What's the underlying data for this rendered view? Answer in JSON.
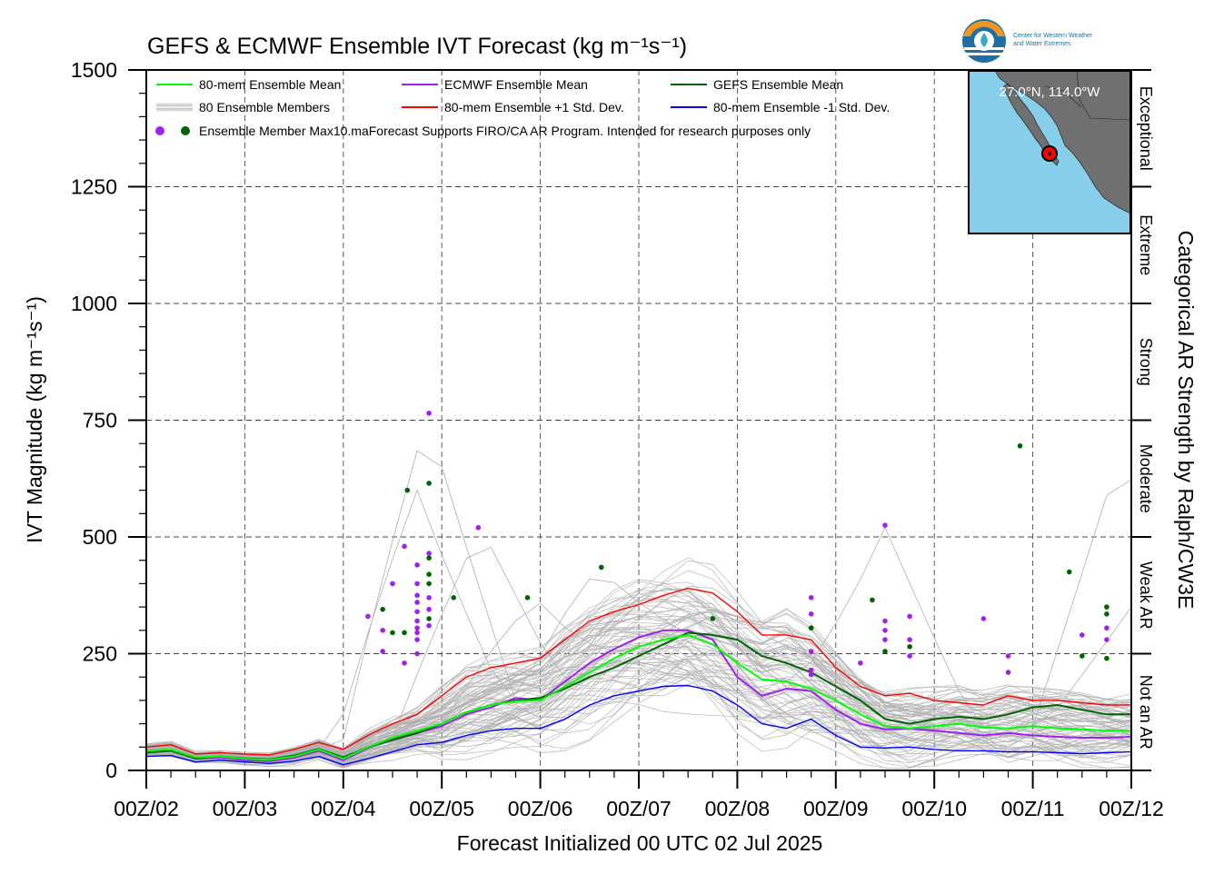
{
  "chart_data": {
    "type": "line",
    "title": "GEFS & ECMWF Ensemble IVT Forecast (kg m⁻¹s⁻¹)",
    "xlabel": "Forecast Initialized 00 UTC 02 Jul 2025",
    "ylabel": "IVT Magnitude (kg m⁻¹s⁻¹)",
    "right_axis_label": "Categorical AR Strength by Ralph/CW3E",
    "ylim": [
      0,
      1500
    ],
    "xlim": [
      0,
      10
    ],
    "y_ticks": [
      "0",
      "250",
      "500",
      "750",
      "1000",
      "1250",
      "1500"
    ],
    "x_ticks": [
      "00Z/02",
      "00Z/03",
      "00Z/04",
      "00Z/05",
      "00Z/06",
      "00Z/07",
      "00Z/08",
      "00Z/09",
      "00Z/10",
      "00Z/11",
      "00Z/12"
    ],
    "grid": true,
    "legend_position": "top-left",
    "categories_right": [
      {
        "label": "Not an AR",
        "from": 0,
        "to": 250
      },
      {
        "label": "Weak AR",
        "from": 250,
        "to": 500
      },
      {
        "label": "Moderate",
        "from": 500,
        "to": 750
      },
      {
        "label": "Strong",
        "from": 750,
        "to": 1000
      },
      {
        "label": "Extreme",
        "from": 1000,
        "to": 1250
      },
      {
        "label": "Exceptional",
        "from": 1250,
        "to": 1500
      }
    ],
    "legend": [
      {
        "label": "80-mem Ensemble Mean",
        "color": "#00ff00",
        "kind": "line"
      },
      {
        "label": "ECMWF Ensemble Mean",
        "color": "#a020f0",
        "kind": "line"
      },
      {
        "label": "GEFS Ensemble Mean",
        "color": "#006400",
        "kind": "line"
      },
      {
        "label": "80 Ensemble Members",
        "color": "#b0b0b0",
        "kind": "multiline"
      },
      {
        "label": "80-mem Ensemble +1 Std. Dev.",
        "color": "#ff0000",
        "kind": "line"
      },
      {
        "label": "80-mem Ensemble -1 Std. Dev.",
        "color": "#0000ff",
        "kind": "line"
      },
      {
        "label": "Ensemble Member Max10.maForecast Supports FIRO/CA AR Program. Intended for research purposes only",
        "color": "#a020f0",
        "color2": "#006400",
        "kind": "dots"
      }
    ],
    "x_step_days": 0.25,
    "series": [
      {
        "name": "80-mem Ensemble Mean",
        "color": "#00ff00",
        "width": 2,
        "values": [
          42,
          45,
          28,
          30,
          25,
          23,
          30,
          45,
          25,
          50,
          70,
          85,
          100,
          125,
          140,
          148,
          150,
          180,
          210,
          240,
          265,
          280,
          290,
          270,
          230,
          195,
          190,
          175,
          150,
          120,
          95,
          90,
          95,
          100,
          92,
          90,
          95,
          90,
          88,
          85,
          85,
          90,
          95,
          90,
          80,
          80,
          85,
          95,
          100,
          105,
          105,
          100,
          110,
          120,
          130,
          150,
          180,
          200,
          190,
          160,
          170,
          185,
          190,
          200,
          210,
          210,
          190,
          160,
          165,
          175,
          185,
          190,
          195,
          190,
          180,
          150,
          145,
          150,
          155,
          155,
          155,
          160,
          130,
          100
        ]
      },
      {
        "name": "ECMWF Ensemble Mean",
        "color": "#a020f0",
        "width": 2,
        "values": [
          40,
          44,
          25,
          28,
          22,
          20,
          27,
          42,
          22,
          48,
          68,
          80,
          95,
          120,
          135,
          155,
          150,
          190,
          230,
          260,
          285,
          300,
          300,
          280,
          200,
          160,
          175,
          170,
          130,
          100,
          88,
          90,
          85,
          80,
          75,
          80,
          75,
          72,
          70,
          70,
          72,
          75,
          70,
          68,
          65,
          70,
          75,
          80,
          85,
          90,
          100,
          110,
          120,
          140,
          150,
          170,
          200,
          220,
          185,
          155,
          170,
          185,
          195,
          205,
          215,
          220,
          195,
          155,
          175,
          190,
          192,
          192,
          190,
          192,
          190,
          145,
          150,
          160,
          155,
          155,
          155,
          160,
          135,
          95
        ]
      },
      {
        "name": "GEFS Ensemble Mean",
        "color": "#006400",
        "width": 2,
        "values": [
          38,
          42,
          26,
          30,
          26,
          24,
          32,
          46,
          28,
          50,
          65,
          80,
          100,
          125,
          140,
          150,
          155,
          175,
          200,
          220,
          245,
          270,
          295,
          290,
          280,
          245,
          230,
          210,
          180,
          150,
          110,
          100,
          110,
          115,
          110,
          120,
          135,
          140,
          130,
          120,
          120,
          122,
          110,
          108,
          112,
          118,
          122,
          130,
          125,
          110,
          110,
          120,
          125,
          125,
          130,
          135,
          145,
          160,
          140,
          120,
          130,
          140,
          140,
          160,
          175,
          195,
          170,
          140,
          140,
          145,
          150,
          165,
          190,
          195,
          180,
          145,
          135,
          140,
          140,
          145,
          155,
          160,
          145,
          125
        ]
      },
      {
        "name": "80-mem Ensemble +1 Std. Dev.",
        "color": "#ff0000",
        "width": 1.4,
        "values": [
          50,
          55,
          35,
          38,
          35,
          33,
          45,
          60,
          45,
          75,
          100,
          120,
          160,
          200,
          220,
          230,
          240,
          280,
          320,
          340,
          355,
          375,
          390,
          380,
          340,
          290,
          290,
          280,
          220,
          180,
          160,
          165,
          150,
          145,
          140,
          160,
          150,
          150,
          145,
          140,
          140,
          135,
          130,
          140,
          160,
          180,
          185,
          170,
          160,
          165,
          180,
          190,
          200,
          220,
          240,
          270,
          220,
          205,
          230,
          240,
          265,
          285,
          290,
          290,
          270,
          210,
          220,
          235,
          250,
          260,
          270,
          270,
          260,
          240,
          240,
          220,
          215,
          225,
          235,
          235,
          235,
          240,
          200,
          175
        ]
      },
      {
        "name": "80-mem Ensemble -1 Std. Dev.",
        "color": "#0000ff",
        "width": 1.4,
        "values": [
          30,
          32,
          18,
          22,
          18,
          15,
          20,
          30,
          12,
          25,
          40,
          55,
          60,
          75,
          85,
          90,
          90,
          110,
          140,
          160,
          170,
          180,
          182,
          170,
          140,
          100,
          90,
          110,
          75,
          50,
          48,
          50,
          45,
          42,
          42,
          40,
          40,
          38,
          36,
          38,
          40,
          38,
          35,
          40,
          45,
          52,
          58,
          60,
          55,
          70,
          82,
          88,
          92,
          100,
          110,
          125,
          130,
          120,
          100,
          95,
          105,
          112,
          115,
          130,
          140,
          145,
          125,
          105,
          108,
          110,
          108,
          108,
          110,
          110,
          105,
          65,
          68,
          75,
          78,
          80,
          82,
          85,
          70,
          52
        ]
      }
    ],
    "members_summary": {
      "count": 80,
      "color": "#b0b0b0",
      "band_low": "-1 Std. Dev.",
      "band_high": "+1 Std. Dev."
    },
    "member_spikes": [
      {
        "peak_x": 2.85,
        "peak_y": 760
      },
      {
        "peak_x": 2.75,
        "peak_y": 600
      },
      {
        "peak_x": 3.4,
        "peak_y": 520
      },
      {
        "peak_x": 3.95,
        "peak_y": 370
      },
      {
        "peak_x": 4.6,
        "peak_y": 435
      },
      {
        "peak_x": 7.5,
        "peak_y": 520
      },
      {
        "peak_x": 9.9,
        "peak_y": 690
      },
      {
        "peak_x": 10.0,
        "peak_y": 350
      }
    ],
    "max_markers": [
      {
        "x": 2.25,
        "y": 330,
        "color": "#a020f0"
      },
      {
        "x": 2.4,
        "y": 345,
        "color": "#006400"
      },
      {
        "x": 2.4,
        "y": 300,
        "color": "#a020f0"
      },
      {
        "x": 2.4,
        "y": 255,
        "color": "#a020f0"
      },
      {
        "x": 2.5,
        "y": 400,
        "color": "#a020f0"
      },
      {
        "x": 2.5,
        "y": 295,
        "color": "#006400"
      },
      {
        "x": 2.62,
        "y": 480,
        "color": "#a020f0"
      },
      {
        "x": 2.62,
        "y": 295,
        "color": "#006400"
      },
      {
        "x": 2.62,
        "y": 230,
        "color": "#a020f0"
      },
      {
        "x": 2.65,
        "y": 600,
        "color": "#006400"
      },
      {
        "x": 2.75,
        "y": 440,
        "color": "#a020f0"
      },
      {
        "x": 2.75,
        "y": 400,
        "color": "#a020f0"
      },
      {
        "x": 2.75,
        "y": 375,
        "color": "#a020f0"
      },
      {
        "x": 2.75,
        "y": 360,
        "color": "#a020f0"
      },
      {
        "x": 2.75,
        "y": 340,
        "color": "#a020f0"
      },
      {
        "x": 2.75,
        "y": 320,
        "color": "#a020f0"
      },
      {
        "x": 2.75,
        "y": 305,
        "color": "#a020f0"
      },
      {
        "x": 2.75,
        "y": 295,
        "color": "#a020f0"
      },
      {
        "x": 2.75,
        "y": 280,
        "color": "#a020f0"
      },
      {
        "x": 2.75,
        "y": 250,
        "color": "#a020f0"
      },
      {
        "x": 2.87,
        "y": 765,
        "color": "#a020f0"
      },
      {
        "x": 2.87,
        "y": 615,
        "color": "#006400"
      },
      {
        "x": 2.87,
        "y": 465,
        "color": "#a020f0"
      },
      {
        "x": 2.87,
        "y": 455,
        "color": "#006400"
      },
      {
        "x": 2.87,
        "y": 420,
        "color": "#006400"
      },
      {
        "x": 2.87,
        "y": 400,
        "color": "#006400"
      },
      {
        "x": 2.87,
        "y": 370,
        "color": "#a020f0"
      },
      {
        "x": 2.87,
        "y": 345,
        "color": "#a020f0"
      },
      {
        "x": 2.87,
        "y": 325,
        "color": "#006400"
      },
      {
        "x": 2.87,
        "y": 310,
        "color": "#a020f0"
      },
      {
        "x": 3.12,
        "y": 370,
        "color": "#006400"
      },
      {
        "x": 3.37,
        "y": 520,
        "color": "#a020f0"
      },
      {
        "x": 3.87,
        "y": 370,
        "color": "#006400"
      },
      {
        "x": 4.62,
        "y": 435,
        "color": "#006400"
      },
      {
        "x": 5.75,
        "y": 325,
        "color": "#006400"
      },
      {
        "x": 6.75,
        "y": 370,
        "color": "#a020f0"
      },
      {
        "x": 6.75,
        "y": 335,
        "color": "#a020f0"
      },
      {
        "x": 6.75,
        "y": 305,
        "color": "#006400"
      },
      {
        "x": 6.75,
        "y": 255,
        "color": "#a020f0"
      },
      {
        "x": 6.75,
        "y": 215,
        "color": "#a020f0"
      },
      {
        "x": 6.75,
        "y": 205,
        "color": "#a020f0"
      },
      {
        "x": 7.25,
        "y": 230,
        "color": "#a020f0"
      },
      {
        "x": 7.37,
        "y": 365,
        "color": "#006400"
      },
      {
        "x": 7.5,
        "y": 525,
        "color": "#a020f0"
      },
      {
        "x": 7.5,
        "y": 320,
        "color": "#a020f0"
      },
      {
        "x": 7.5,
        "y": 300,
        "color": "#a020f0"
      },
      {
        "x": 7.5,
        "y": 280,
        "color": "#a020f0"
      },
      {
        "x": 7.5,
        "y": 255,
        "color": "#006400"
      },
      {
        "x": 7.75,
        "y": 330,
        "color": "#a020f0"
      },
      {
        "x": 7.75,
        "y": 280,
        "color": "#a020f0"
      },
      {
        "x": 7.75,
        "y": 265,
        "color": "#006400"
      },
      {
        "x": 7.75,
        "y": 245,
        "color": "#a020f0"
      },
      {
        "x": 8.5,
        "y": 325,
        "color": "#a020f0"
      },
      {
        "x": 8.75,
        "y": 245,
        "color": "#a020f0"
      },
      {
        "x": 8.75,
        "y": 210,
        "color": "#a020f0"
      },
      {
        "x": 8.87,
        "y": 695,
        "color": "#006400"
      },
      {
        "x": 9.37,
        "y": 425,
        "color": "#006400"
      },
      {
        "x": 9.5,
        "y": 290,
        "color": "#a020f0"
      },
      {
        "x": 9.5,
        "y": 245,
        "color": "#006400"
      },
      {
        "x": 9.75,
        "y": 350,
        "color": "#006400"
      },
      {
        "x": 9.75,
        "y": 335,
        "color": "#006400"
      },
      {
        "x": 9.75,
        "y": 305,
        "color": "#a020f0"
      },
      {
        "x": 9.75,
        "y": 280,
        "color": "#a020f0"
      },
      {
        "x": 9.75,
        "y": 240,
        "color": "#006400"
      }
    ]
  },
  "inset_map": {
    "coords_label": "27.0°N, 114.0°W",
    "ocean_color": "#87ceeb",
    "land_color": "#707070",
    "marker_color": "#ff0000"
  },
  "logo": {
    "line1": "Center for Western Weather",
    "line2": "and Water Extremes",
    "orange": "#f7941d",
    "blue": "#1f6fa5",
    "teal": "#3aa9c5"
  }
}
